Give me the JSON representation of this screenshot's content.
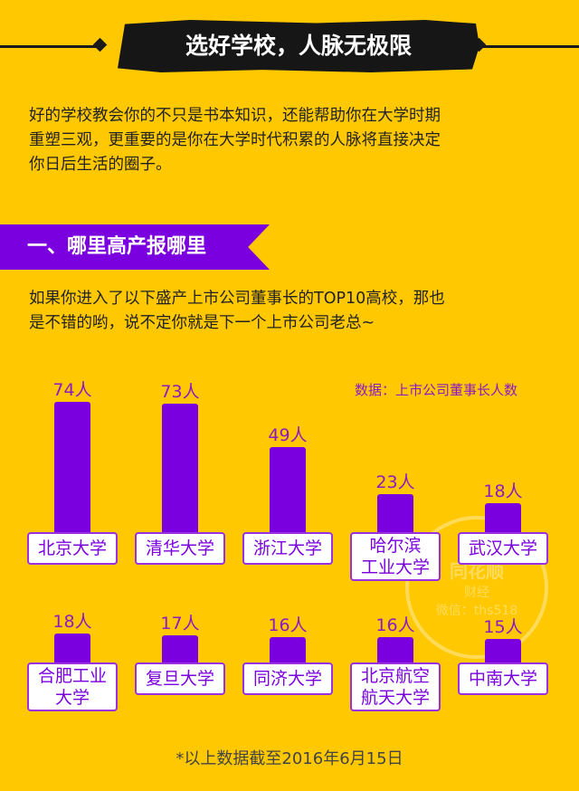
{
  "title": "选好学校，人脉无极限",
  "intro": [
    "好的学校教会你的不只是书本知识，还能帮助你在大学时期",
    "重塑三观，更重要的是你在大学时代积累的人脉将直接决定",
    "你日后生活的圈子。"
  ],
  "section": {
    "heading": "一、哪里高产报哪里"
  },
  "desc": [
    "如果你进入了以下盛产上市公司董事长的TOP10高校，那也",
    "是不错的哟，说不定你就是下一个上市公司老总~"
  ],
  "watermark": {
    "main": "同花顺",
    "sub": "财经",
    "wechat": "微信：ths518"
  },
  "colors": {
    "background": "#FFC800",
    "bar": "#7B00E0",
    "label": "#8B1BC4",
    "banner": "#161616"
  },
  "chart_data": {
    "type": "bar",
    "title": "",
    "source_note": "数据：上市公司董事长人数",
    "unit": "人",
    "categories": [
      "北京大学",
      "清华大学",
      "浙江大学",
      "哈尔滨\n工业大学",
      "武汉大学",
      "合肥工业\n大学",
      "复旦大学",
      "同济大学",
      "北京航空\n航天大学",
      "中南大学"
    ],
    "values": [
      74,
      73,
      49,
      23,
      18,
      18,
      17,
      16,
      16,
      15
    ],
    "value_labels": [
      "74人",
      "73人",
      "49人",
      "23人",
      "18人",
      "18人",
      "17人",
      "16人",
      "16人",
      "15人"
    ]
  },
  "footnote": "*以上数据截至2016年6月15日"
}
